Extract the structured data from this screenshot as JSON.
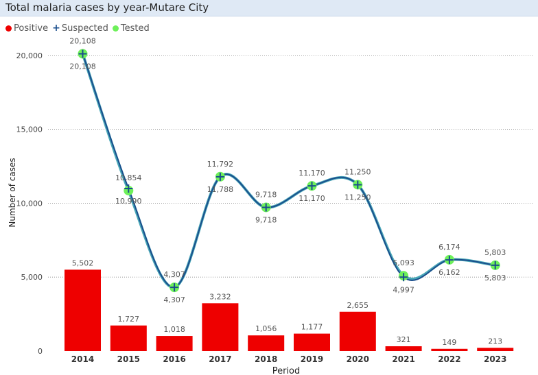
{
  "title": "Total malaria cases by year-Mutare City",
  "legend": {
    "positive": "Positive",
    "suspected": "Suspected",
    "tested": "Tested"
  },
  "colors": {
    "positive": "#ee0000",
    "suspected": "#1a4e8c",
    "tested": "#6ef05a",
    "background": "#dfe9f5"
  },
  "chart_data": {
    "type": "bar",
    "categories": [
      "2014",
      "2015",
      "2016",
      "2017",
      "2018",
      "2019",
      "2020",
      "2021",
      "2022",
      "2023"
    ],
    "series": [
      {
        "name": "Positive",
        "type": "bar",
        "values": [
          5502,
          1727,
          1018,
          3232,
          1056,
          1177,
          2655,
          321,
          149,
          213
        ]
      },
      {
        "name": "Suspected",
        "type": "line",
        "values": [
          20108,
          10990,
          4307,
          11788,
          9718,
          11170,
          11250,
          4997,
          6162,
          5803
        ]
      },
      {
        "name": "Tested",
        "type": "line",
        "values": [
          20108,
          10854,
          4307,
          11792,
          9718,
          11170,
          11250,
          5093,
          6174,
          5803
        ]
      }
    ],
    "bar_labels": [
      "5,502",
      "1,727",
      "1,018",
      "3,232",
      "1,056",
      "1,177",
      "2,655",
      "321",
      "149",
      "213"
    ],
    "suspected_labels": [
      "20,108",
      "10,990",
      "4,307",
      "11,788",
      "9,718",
      "11,170",
      "11,250",
      "4,997",
      "6,162",
      "5,803"
    ],
    "tested_labels": [
      "20,108",
      "10,854",
      "4,307",
      "11,792",
      "9,718",
      "11,170",
      "11,250",
      "5,093",
      "6,174",
      "5,803"
    ],
    "yticks": [
      0,
      5000,
      10000,
      15000,
      20000
    ],
    "ytick_labels": [
      "0",
      "5,000",
      "10,000",
      "15,000",
      "20,000"
    ],
    "ylim": [
      0,
      20500
    ],
    "xlabel": "Period",
    "ylabel": "Number of cases",
    "legend_position": "top-left",
    "grid": true
  }
}
